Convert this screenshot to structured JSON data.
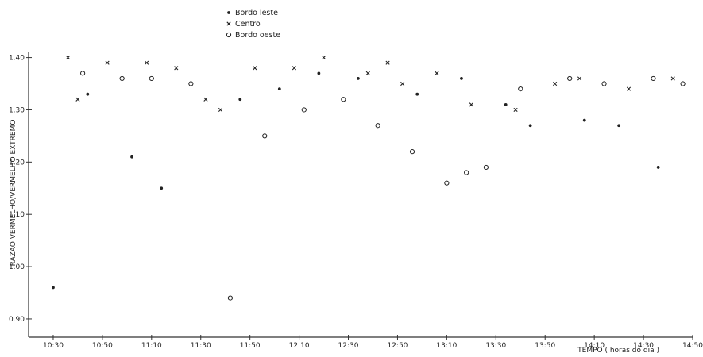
{
  "chart_data": {
    "type": "scatter",
    "title": "",
    "xlabel": "TEMPO ( horas do dia )",
    "ylabel": "RAZAO VERMELHO/VERMELHO EXTREMO",
    "xlim": [
      "10:20",
      "14:50"
    ],
    "ylim": [
      0.865,
      1.41
    ],
    "grid": false,
    "legend_position": "top-center",
    "x_ticks": [
      "10:30",
      "10:50",
      "11:10",
      "11:30",
      "11:50",
      "12:10",
      "12:30",
      "12:50",
      "13:10",
      "13:30",
      "13:50",
      "14:10",
      "14:30",
      "14:50"
    ],
    "y_ticks": [
      "0.90",
      "1.00",
      "1.10",
      "1.20",
      "1.30",
      "1.40"
    ],
    "series": [
      {
        "name": "Bordo leste",
        "marker": "dot",
        "x": [
          "10:30",
          "10:44",
          "11:02",
          "11:14",
          "11:46",
          "12:02",
          "12:18",
          "12:34",
          "12:58",
          "13:16",
          "13:34",
          "13:44",
          "14:06",
          "14:20",
          "14:36"
        ],
        "y": [
          0.96,
          1.33,
          1.21,
          1.15,
          1.32,
          1.34,
          1.37,
          1.36,
          1.33,
          1.36,
          1.31,
          1.27,
          1.28,
          1.27,
          1.19
        ]
      },
      {
        "name": "Centro",
        "marker": "x",
        "x": [
          "10:36",
          "10:40",
          "10:52",
          "11:08",
          "11:20",
          "11:32",
          "11:38",
          "11:52",
          "12:08",
          "12:20",
          "12:38",
          "12:46",
          "12:52",
          "13:06",
          "13:20",
          "13:38",
          "13:54",
          "14:04",
          "14:24",
          "14:42"
        ],
        "y": [
          1.4,
          1.32,
          1.39,
          1.39,
          1.38,
          1.32,
          1.3,
          1.38,
          1.38,
          1.4,
          1.37,
          1.39,
          1.35,
          1.37,
          1.31,
          1.3,
          1.35,
          1.36,
          1.34,
          1.36
        ]
      },
      {
        "name": "Bordo oeste",
        "marker": "circle",
        "x": [
          "10:42",
          "10:58",
          "11:10",
          "11:26",
          "11:42",
          "11:56",
          "12:12",
          "12:28",
          "12:42",
          "12:56",
          "13:10",
          "13:18",
          "13:26",
          "13:40",
          "14:00",
          "14:14",
          "14:34",
          "14:46"
        ],
        "y": [
          1.37,
          1.36,
          1.36,
          1.35,
          0.94,
          1.25,
          1.3,
          1.32,
          1.27,
          1.22,
          1.16,
          1.18,
          1.19,
          1.34,
          1.36,
          1.35,
          1.36,
          1.35
        ]
      }
    ]
  }
}
